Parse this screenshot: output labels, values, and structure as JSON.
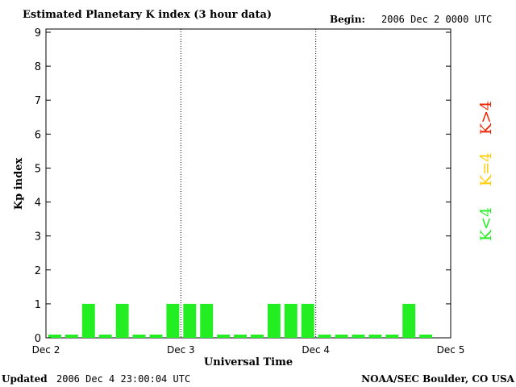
{
  "header": {
    "title": "Estimated Planetary K index (3 hour data)",
    "begin_label": "Begin:",
    "begin_value": "2006 Dec 2 0000 UTC"
  },
  "footer": {
    "updated_label": "Updated",
    "updated_value": "2006 Dec  4 23:00:04 UTC",
    "source": "NOAA/SEC Boulder, CO USA"
  },
  "legend": {
    "items": [
      {
        "label": "K<4",
        "color": "#22ee22"
      },
      {
        "label": "K=4",
        "color": "#ffcc00"
      },
      {
        "label": "K>4",
        "color": "#ee2200"
      }
    ]
  },
  "chart_data": {
    "type": "bar",
    "title": "Estimated Planetary K index (3 hour data)",
    "xlabel": "Universal Time",
    "ylabel": "Kp index",
    "ylim": [
      0,
      9
    ],
    "yticks": [
      0,
      1,
      2,
      3,
      4,
      5,
      6,
      7,
      8,
      9
    ],
    "xticks": [
      "Dec 2",
      "Dec 3",
      "Dec 4",
      "Dec 5"
    ],
    "bar_interval_hours": 3,
    "day_separators": [
      "Dec 3",
      "Dec 4"
    ],
    "grid": false,
    "bar_color": "#22ee22",
    "values": [
      0,
      0,
      1,
      0,
      1,
      0,
      0,
      1,
      1,
      1,
      0,
      0,
      0,
      1,
      1,
      1,
      0,
      0,
      0,
      0,
      0,
      1,
      0
    ]
  }
}
